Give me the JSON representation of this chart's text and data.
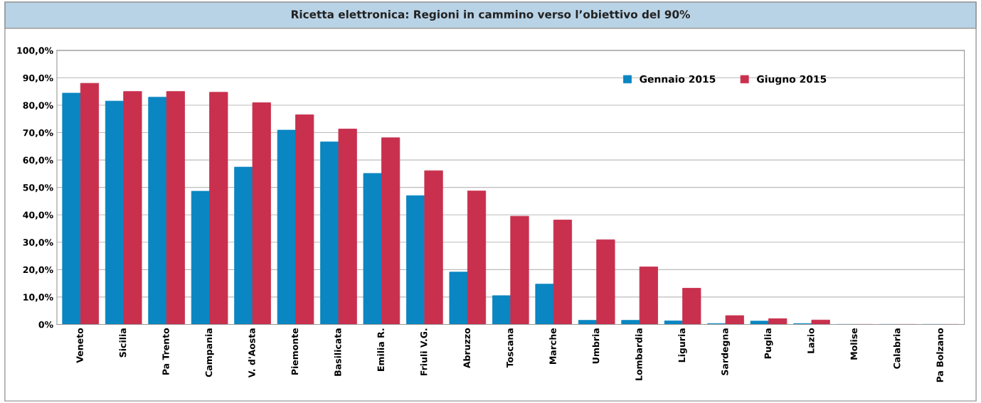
{
  "chart_data": {
    "type": "bar",
    "title": "Ricetta elettronica: Regioni in cammino verso l’obiettivo del 90%",
    "categories": [
      "Veneto",
      "Sicilia",
      "Pa Trento",
      "Campania",
      "V. d'Aosta",
      "Piemonte",
      "Basilicata",
      "Emilia R.",
      "Friuli V.G.",
      "Abruzzo",
      "Toscana",
      "Marche",
      "Umbria",
      "Lombardia",
      "Liguria",
      "Sardegna",
      "Puglia",
      "Lazio",
      "Molise",
      "Calabria",
      "Pa Bolzano"
    ],
    "series": [
      {
        "name": "Gennaio 2015",
        "color": "#0a86c2",
        "values": [
          84.4,
          81.5,
          82.9,
          48.6,
          57.4,
          70.9,
          66.6,
          55.1,
          47.0,
          19.1,
          10.5,
          14.7,
          1.5,
          1.5,
          1.3,
          0.3,
          1.2,
          0.3,
          0,
          0,
          0
        ]
      },
      {
        "name": "Giugno 2015",
        "color": "#c8304e",
        "values": [
          88.0,
          85.0,
          85.0,
          84.7,
          80.9,
          76.5,
          71.3,
          68.1,
          56.1,
          48.7,
          39.5,
          38.1,
          30.9,
          21.0,
          13.2,
          3.2,
          2.1,
          1.6,
          0,
          0,
          0
        ]
      }
    ],
    "ylim": [
      0,
      100
    ],
    "yticks": [
      {
        "value": 0,
        "label": "0%"
      },
      {
        "value": 10,
        "label": "10,0%"
      },
      {
        "value": 20,
        "label": "20,0%"
      },
      {
        "value": 30,
        "label": "30,0%"
      },
      {
        "value": 40,
        "label": "40,0%"
      },
      {
        "value": 50,
        "label": "50,0%"
      },
      {
        "value": 60,
        "label": "60,0%"
      },
      {
        "value": 70,
        "label": "70,0%"
      },
      {
        "value": 80,
        "label": "80,0%"
      },
      {
        "value": 90,
        "label": "90,0%"
      },
      {
        "value": 100,
        "label": "100,0%"
      }
    ],
    "grid": "y",
    "legend": "top right"
  }
}
